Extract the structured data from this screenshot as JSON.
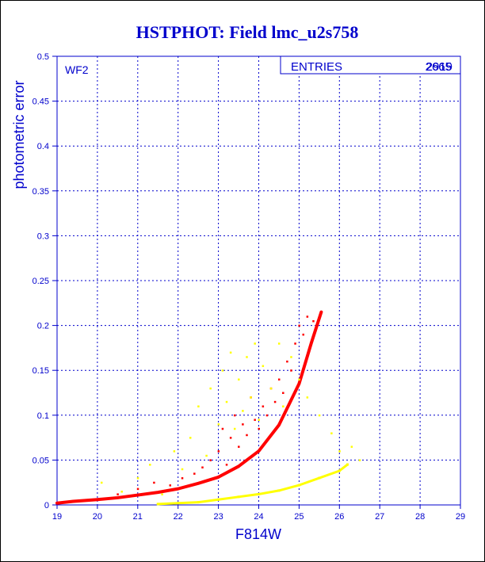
{
  "chart_data": {
    "type": "scatter",
    "title": "HSTPHOT: Field lmc_u2s758",
    "xlabel": "F814W",
    "ylabel": "photometric error",
    "panel_label": "WF2",
    "stats_box": {
      "label": "ENTRIES",
      "value_a": "2919",
      "value_b": "2665"
    },
    "xlim": [
      19,
      29
    ],
    "ylim": [
      0,
      0.5
    ],
    "x_ticks": [
      "19",
      "20",
      "21",
      "22",
      "23",
      "24",
      "25",
      "26",
      "27",
      "28",
      "29"
    ],
    "y_ticks": [
      "0",
      "0.05",
      "0.1",
      "0.15",
      "0.2",
      "0.25",
      "0.3",
      "0.35",
      "0.4",
      "0.45",
      "0.5"
    ],
    "grid": true,
    "series": [
      {
        "color": "#ff0000",
        "curve": [
          [
            19.0,
            0.002
          ],
          [
            19.4,
            0.004
          ],
          [
            20.0,
            0.006
          ],
          [
            20.5,
            0.008
          ],
          [
            21.0,
            0.011
          ],
          [
            21.5,
            0.014
          ],
          [
            22.0,
            0.018
          ],
          [
            22.5,
            0.024
          ],
          [
            23.0,
            0.031
          ],
          [
            23.5,
            0.043
          ],
          [
            24.0,
            0.06
          ],
          [
            24.5,
            0.089
          ],
          [
            25.0,
            0.135
          ],
          [
            25.3,
            0.18
          ],
          [
            25.55,
            0.215
          ]
        ],
        "scatter": [
          [
            20.5,
            0.012
          ],
          [
            21.0,
            0.018
          ],
          [
            21.4,
            0.025
          ],
          [
            21.8,
            0.022
          ],
          [
            22.1,
            0.03
          ],
          [
            22.4,
            0.035
          ],
          [
            22.6,
            0.042
          ],
          [
            22.8,
            0.05
          ],
          [
            23.0,
            0.06
          ],
          [
            23.1,
            0.085
          ],
          [
            23.2,
            0.045
          ],
          [
            23.3,
            0.075
          ],
          [
            23.4,
            0.1
          ],
          [
            23.5,
            0.065
          ],
          [
            23.6,
            0.09
          ],
          [
            23.7,
            0.078
          ],
          [
            23.8,
            0.12
          ],
          [
            23.9,
            0.095
          ],
          [
            24.0,
            0.085
          ],
          [
            24.1,
            0.11
          ],
          [
            24.2,
            0.1
          ],
          [
            24.3,
            0.13
          ],
          [
            24.4,
            0.115
          ],
          [
            24.5,
            0.14
          ],
          [
            24.6,
            0.125
          ],
          [
            24.7,
            0.16
          ],
          [
            24.8,
            0.15
          ],
          [
            24.9,
            0.18
          ],
          [
            25.0,
            0.2
          ],
          [
            25.1,
            0.19
          ],
          [
            25.2,
            0.21
          ],
          [
            25.35,
            0.205
          ]
        ]
      },
      {
        "color": "#ffff00",
        "curve": [
          [
            21.5,
            0.001
          ],
          [
            22.0,
            0.002
          ],
          [
            22.5,
            0.003
          ],
          [
            23.0,
            0.006
          ],
          [
            23.5,
            0.009
          ],
          [
            24.0,
            0.012
          ],
          [
            24.5,
            0.016
          ],
          [
            25.0,
            0.022
          ],
          [
            25.5,
            0.03
          ],
          [
            26.0,
            0.038
          ],
          [
            26.2,
            0.045
          ]
        ],
        "scatter": [
          [
            20.1,
            0.025
          ],
          [
            20.6,
            0.015
          ],
          [
            21.0,
            0.03
          ],
          [
            21.3,
            0.045
          ],
          [
            21.6,
            0.012
          ],
          [
            21.9,
            0.06
          ],
          [
            22.1,
            0.04
          ],
          [
            22.3,
            0.075
          ],
          [
            22.5,
            0.11
          ],
          [
            22.7,
            0.055
          ],
          [
            22.8,
            0.13
          ],
          [
            23.0,
            0.09
          ],
          [
            23.1,
            0.15
          ],
          [
            23.2,
            0.115
          ],
          [
            23.3,
            0.17
          ],
          [
            23.4,
            0.085
          ],
          [
            23.5,
            0.14
          ],
          [
            23.6,
            0.105
          ],
          [
            23.7,
            0.165
          ],
          [
            23.8,
            0.12
          ],
          [
            23.9,
            0.18
          ],
          [
            24.0,
            0.095
          ],
          [
            24.1,
            0.155
          ],
          [
            24.3,
            0.13
          ],
          [
            24.5,
            0.18
          ],
          [
            24.6,
            0.11
          ],
          [
            24.8,
            0.165
          ],
          [
            25.0,
            0.14
          ],
          [
            25.2,
            0.12
          ],
          [
            25.5,
            0.1
          ],
          [
            25.8,
            0.08
          ],
          [
            26.0,
            0.06
          ],
          [
            26.3,
            0.065
          ],
          [
            26.5,
            0.05
          ]
        ]
      }
    ]
  }
}
